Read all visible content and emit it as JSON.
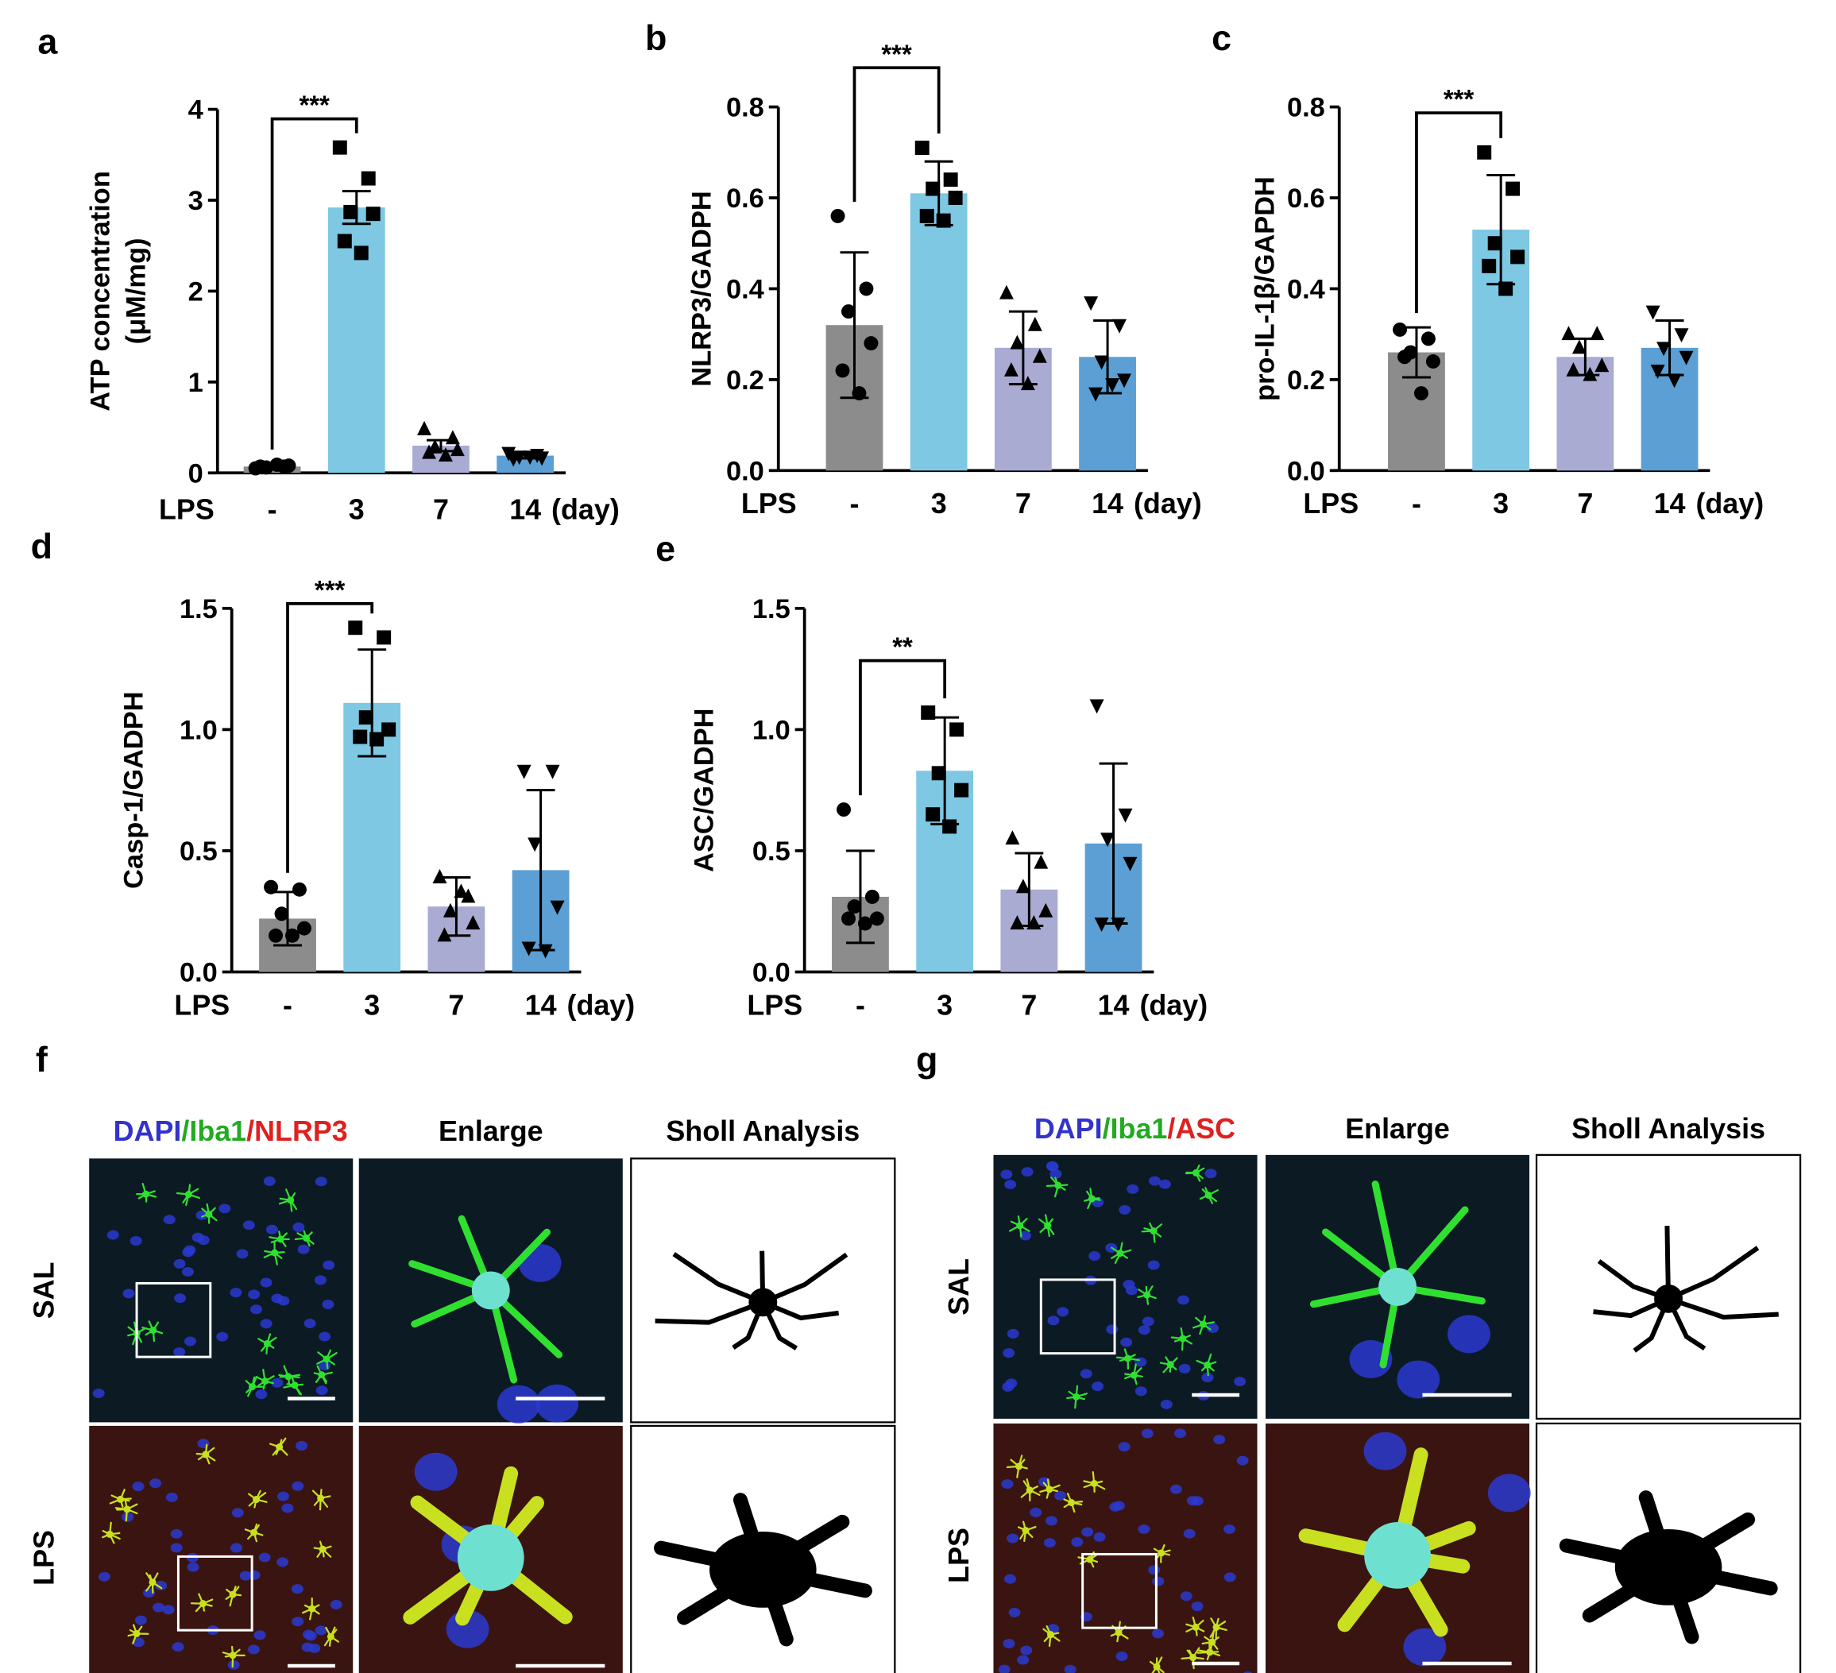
{
  "chart_data": [
    {
      "type": "bar",
      "letter": "a",
      "ylabel": [
        "ATP concentration",
        "(μM/mg)"
      ],
      "x_prefix": "LPS",
      "x_unit": "(day)",
      "categories": [
        "-",
        "3",
        "7",
        "14"
      ],
      "colors": [
        "#8c8c8c",
        "#7ec8e3",
        "#a9abd3",
        "#5b9fd4"
      ],
      "markers": [
        "circle",
        "square",
        "triangle-up",
        "triangle-down"
      ],
      "values": [
        0.07,
        2.92,
        0.3,
        0.19
      ],
      "errors": [
        0.03,
        0.18,
        0.06,
        0.03
      ],
      "points": [
        [
          0.05,
          0.07,
          0.06,
          0.08,
          0.07,
          0.09
        ],
        [
          3.58,
          3.24,
          2.87,
          2.85,
          2.55,
          2.42
        ],
        [
          0.48,
          0.38,
          0.28,
          0.25,
          0.22,
          0.19
        ],
        [
          0.22,
          0.2,
          0.18,
          0.17,
          0.16,
          0.18
        ]
      ],
      "ylim": [
        0,
        4
      ],
      "yticks": [
        0,
        1,
        2,
        3,
        4
      ],
      "significance": {
        "label": "***",
        "between": [
          0,
          1
        ]
      }
    },
    {
      "type": "bar",
      "letter": "b",
      "ylabel": [
        "NLRP3/GADPH"
      ],
      "x_prefix": "LPS",
      "x_unit": "(day)",
      "categories": [
        "-",
        "3",
        "7",
        "14"
      ],
      "colors": [
        "#8c8c8c",
        "#7ec8e3",
        "#a9abd3",
        "#5b9fd4"
      ],
      "markers": [
        "circle",
        "square",
        "triangle-up",
        "triangle-down"
      ],
      "values": [
        0.32,
        0.61,
        0.27,
        0.25
      ],
      "errors": [
        0.16,
        0.07,
        0.08,
        0.08
      ],
      "points": [
        [
          0.56,
          0.4,
          0.35,
          0.28,
          0.22,
          0.17
        ],
        [
          0.71,
          0.64,
          0.62,
          0.6,
          0.56,
          0.55
        ],
        [
          0.39,
          0.32,
          0.28,
          0.25,
          0.22,
          0.19
        ],
        [
          0.37,
          0.32,
          0.24,
          0.2,
          0.17,
          0.19
        ]
      ],
      "ylim": [
        0,
        0.8
      ],
      "yticks": [
        {
          "value": 0,
          "label": "0.0"
        },
        0.2,
        0.4,
        0.6,
        0.8
      ],
      "significance": {
        "label": "***",
        "between": [
          0,
          1
        ]
      }
    },
    {
      "type": "bar",
      "letter": "c",
      "ylabel": [
        "pro-IL-1β/GAPDH"
      ],
      "x_prefix": "LPS",
      "x_unit": "(day)",
      "categories": [
        "-",
        "3",
        "7",
        "14"
      ],
      "colors": [
        "#8c8c8c",
        "#7ec8e3",
        "#a9abd3",
        "#5b9fd4"
      ],
      "markers": [
        "circle",
        "square",
        "triangle-up",
        "triangle-down"
      ],
      "values": [
        0.26,
        0.53,
        0.25,
        0.27
      ],
      "errors": [
        0.055,
        0.12,
        0.04,
        0.06
      ],
      "points": [
        [
          0.31,
          0.29,
          0.26,
          0.24,
          0.25,
          0.17
        ],
        [
          0.7,
          0.62,
          0.5,
          0.47,
          0.45,
          0.4
        ],
        [
          0.3,
          0.3,
          0.27,
          0.23,
          0.22,
          0.21
        ],
        [
          0.35,
          0.3,
          0.27,
          0.25,
          0.22,
          0.2
        ]
      ],
      "ylim": [
        0,
        0.8
      ],
      "yticks": [
        {
          "value": 0,
          "label": "0.0"
        },
        0.2,
        0.4,
        0.6,
        0.8
      ],
      "significance": {
        "label": "***",
        "between": [
          0,
          1
        ]
      }
    },
    {
      "type": "bar",
      "letter": "d",
      "ylabel": [
        "Casp-1/GADPH"
      ],
      "x_prefix": "LPS",
      "x_unit": "(day)",
      "categories": [
        "-",
        "3",
        "7",
        "14"
      ],
      "colors": [
        "#8c8c8c",
        "#7ec8e3",
        "#a9abd3",
        "#5b9fd4"
      ],
      "markers": [
        "circle",
        "square",
        "triangle-up",
        "triangle-down"
      ],
      "values": [
        0.22,
        1.11,
        0.27,
        0.42
      ],
      "errors": [
        0.11,
        0.22,
        0.12,
        0.33
      ],
      "points": [
        [
          0.35,
          0.34,
          0.24,
          0.18,
          0.15,
          0.15
        ],
        [
          1.42,
          1.38,
          1.05,
          1.0,
          0.97,
          0.96
        ],
        [
          0.39,
          0.31,
          0.25,
          0.2,
          0.15,
          0.33
        ],
        [
          0.83,
          0.83,
          0.53,
          0.27,
          0.1,
          0.09
        ]
      ],
      "ylim": [
        0,
        1.5
      ],
      "yticks": [
        {
          "value": 0,
          "label": "0.0"
        },
        0.5,
        {
          "value": 1,
          "label": "1.0"
        },
        1.5
      ],
      "significance": {
        "label": "***",
        "between": [
          0,
          1
        ]
      }
    },
    {
      "type": "bar",
      "letter": "e",
      "ylabel": [
        "ASC/GADPH"
      ],
      "x_prefix": "LPS",
      "x_unit": "(day)",
      "categories": [
        "-",
        "3",
        "7",
        "14"
      ],
      "colors": [
        "#8c8c8c",
        "#7ec8e3",
        "#a9abd3",
        "#5b9fd4"
      ],
      "markers": [
        "circle",
        "square",
        "triangle-up",
        "triangle-down"
      ],
      "values": [
        0.31,
        0.83,
        0.34,
        0.53
      ],
      "errors": [
        0.19,
        0.22,
        0.15,
        0.33
      ],
      "points": [
        [
          0.67,
          0.31,
          0.27,
          0.22,
          0.22,
          0.2
        ],
        [
          1.07,
          1.0,
          0.82,
          0.75,
          0.65,
          0.6
        ],
        [
          0.55,
          0.45,
          0.35,
          0.25,
          0.2,
          0.2
        ],
        [
          1.1,
          0.65,
          0.55,
          0.45,
          0.2,
          0.2
        ]
      ],
      "ylim": [
        0,
        1.5
      ],
      "yticks": [
        {
          "value": 0,
          "label": "0.0"
        },
        0.5,
        {
          "value": 1,
          "label": "1.0"
        },
        1.5
      ],
      "significance": {
        "label": "**",
        "between": [
          0,
          1
        ]
      }
    }
  ],
  "image_panels": [
    {
      "letter": "f",
      "stains": [
        "DAPI",
        "Iba1",
        "NLRP3"
      ],
      "stain_colors": [
        "#3333cc",
        "#22aa22",
        "#e02020"
      ],
      "separator": "/",
      "columns": [
        "Enlarge",
        "Sholl Analysis"
      ],
      "rows": [
        "SAL",
        "LPS"
      ]
    },
    {
      "letter": "g",
      "stains": [
        "DAPI",
        "Iba1",
        "ASC"
      ],
      "stain_colors": [
        "#3333cc",
        "#22aa22",
        "#e02020"
      ],
      "separator": "/",
      "columns": [
        "Enlarge",
        "Sholl Analysis"
      ],
      "rows": [
        "SAL",
        "LPS"
      ]
    }
  ]
}
